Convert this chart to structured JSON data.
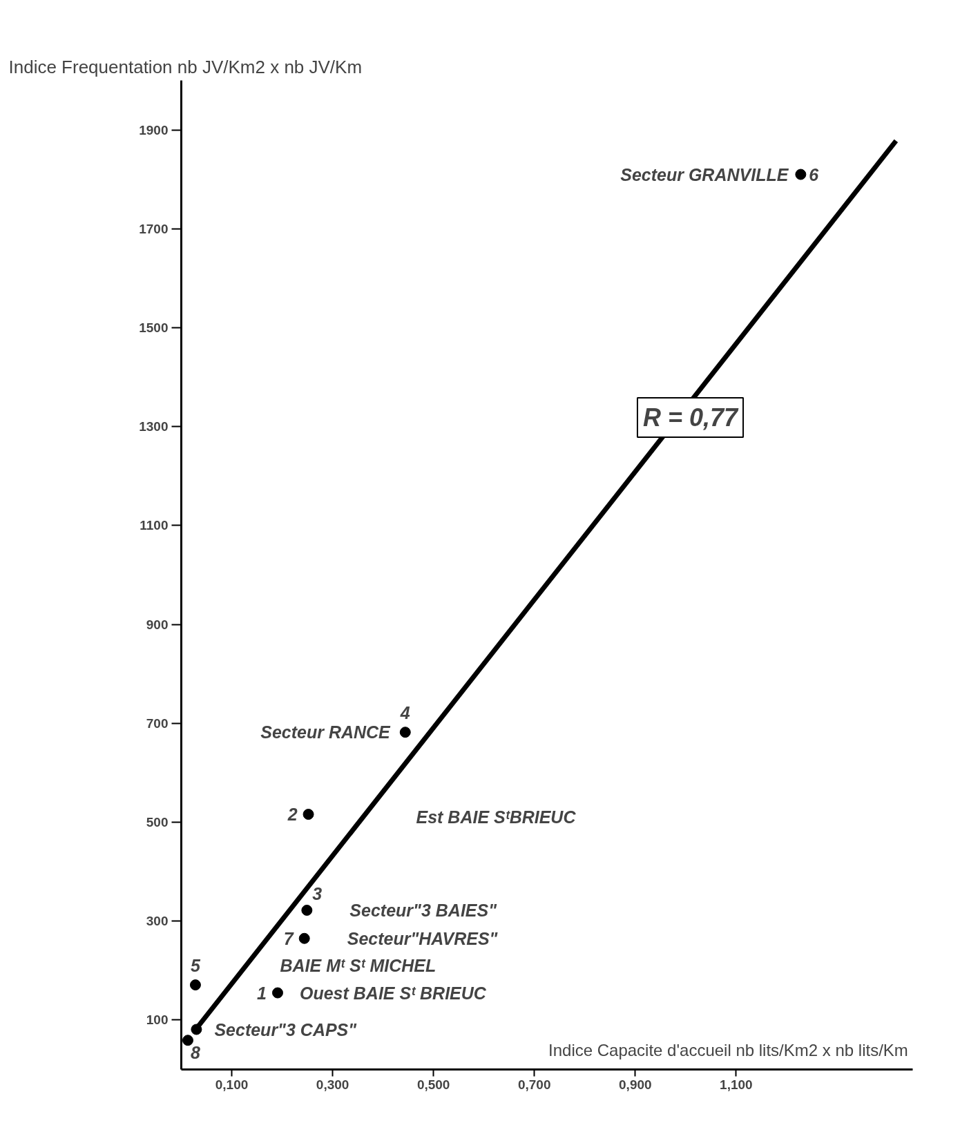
{
  "chart_data": {
    "type": "scatter",
    "xlabel": "Indice Capacite d'accueil  nb lits/Km2 x nb lits/Km",
    "ylabel": "Indice Frequentation  nb JV/Km2 x nb JV/Km",
    "xlim": [
      0,
      1.45
    ],
    "ylim": [
      0,
      2000
    ],
    "xticks": [
      {
        "value": 0.1,
        "label": "0,100"
      },
      {
        "value": 0.3,
        "label": "0,300"
      },
      {
        "value": 0.5,
        "label": "0,500"
      },
      {
        "value": 0.7,
        "label": "0,700"
      },
      {
        "value": 0.9,
        "label": "0,900"
      },
      {
        "value": 1.1,
        "label": "1,100"
      }
    ],
    "yticks": [
      100,
      300,
      500,
      700,
      900,
      1100,
      1300,
      1500,
      1700,
      1900
    ],
    "grid": false,
    "series": [
      {
        "marker": "circle",
        "color": "#000000",
        "x": [
          1.228,
          0.444,
          0.252,
          0.249,
          0.244,
          0.028,
          0.191,
          0.03,
          0.013
        ],
        "values": [
          1810,
          682,
          516,
          322,
          265,
          171,
          155,
          81,
          59
        ]
      },
      {
        "type": "line",
        "marker": "none",
        "color": "#000000",
        "x": [
          0.0255,
          1.417
        ],
        "values": [
          77,
          1878
        ]
      }
    ],
    "annotations": [
      {
        "text": "Secteur GRANVILLE",
        "x": 1.228,
        "y": 1810
      },
      {
        "text": "6",
        "x": 1.228,
        "y": 1810
      },
      {
        "text": "Secteur RANCE",
        "x": 0.444,
        "y": 682
      },
      {
        "text": "4",
        "x": 0.444,
        "y": 682
      },
      {
        "text": "2",
        "x": 0.252,
        "y": 516
      },
      "Est BAIE SᵗBRIEUC",
      {
        "text": "3",
        "x": 0.249,
        "y": 322
      },
      {
        "text": "Secteur\"3 BAIES\"",
        "x": 0.249,
        "y": 322
      },
      {
        "text": "7",
        "x": 0.244,
        "y": 265
      },
      {
        "text": "Secteur\"HAVRES\"",
        "x": 0.244,
        "y": 265
      },
      {
        "text": "5",
        "x": 0.028,
        "y": 171
      },
      "BAIE Mᵗ Sᵗ MICHEL",
      {
        "text": "1",
        "x": 0.191,
        "y": 155
      },
      {
        "text": "Ouest BAIE Sᵗ BRIEUC",
        "x": 0.191,
        "y": 155
      },
      {
        "text": "Secteur\"3 CAPS\"",
        "x": 0.03,
        "y": 81
      },
      {
        "text": "8",
        "x": 0.013,
        "y": 59
      },
      "R = 0,77"
    ]
  }
}
